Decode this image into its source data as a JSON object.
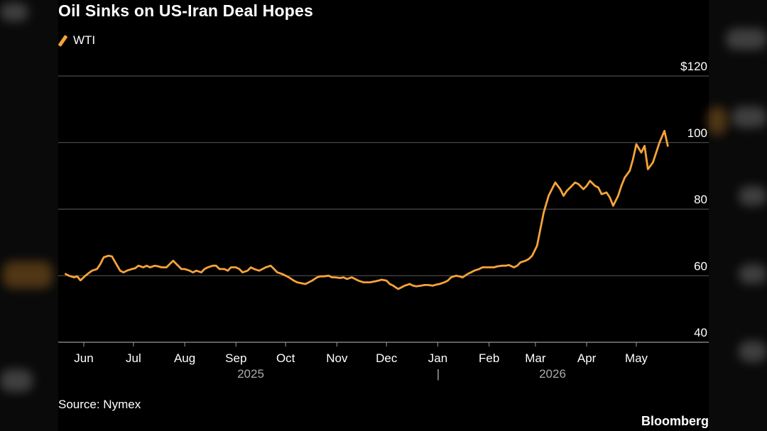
{
  "title": "Oil Sinks on US-Iran Deal Hopes",
  "source": "Source: Nymex",
  "brand": "Bloomberg",
  "colors": {
    "series": "#f7a33a",
    "grid": "#5a5a5a",
    "text": "#ffffff",
    "year_text": "#aaaaaa"
  },
  "chart_data": {
    "type": "line",
    "title": "Oil Sinks on US-Iran Deal Hopes",
    "ylim": [
      40,
      120
    ],
    "yticks": [
      40,
      60,
      80,
      100,
      120
    ],
    "ytick_labels": [
      "40",
      "60",
      "80",
      "100",
      "$120"
    ],
    "xticks": [
      "2025-06-01",
      "2025-07-01",
      "2025-08-01",
      "2025-09-01",
      "2025-10-01",
      "2025-11-01",
      "2025-12-01",
      "2026-01-01",
      "2026-02-01",
      "2026-03-01",
      "2026-04-01",
      "2026-05-01"
    ],
    "xtick_labels": [
      "Jun",
      "Jul",
      "Aug",
      "Sep",
      "Oct",
      "Nov",
      "Dec",
      "Jan",
      "Feb",
      "Mar",
      "Apr",
      "May"
    ],
    "year_labels": [
      "2025",
      "|",
      "2026"
    ],
    "grid": true,
    "legend_position": "top-left",
    "series": [
      {
        "name": "WTI",
        "x": [
          "2025-05-21",
          "2025-05-23",
          "2025-05-26",
          "2025-05-28",
          "2025-05-30",
          "2025-06-02",
          "2025-06-04",
          "2025-06-06",
          "2025-06-09",
          "2025-06-11",
          "2025-06-13",
          "2025-06-16",
          "2025-06-18",
          "2025-06-20",
          "2025-06-23",
          "2025-06-25",
          "2025-06-27",
          "2025-06-30",
          "2025-07-02",
          "2025-07-04",
          "2025-07-07",
          "2025-07-09",
          "2025-07-11",
          "2025-07-14",
          "2025-07-16",
          "2025-07-18",
          "2025-07-21",
          "2025-07-23",
          "2025-07-25",
          "2025-07-28",
          "2025-07-30",
          "2025-08-01",
          "2025-08-04",
          "2025-08-06",
          "2025-08-08",
          "2025-08-11",
          "2025-08-13",
          "2025-08-15",
          "2025-08-18",
          "2025-08-20",
          "2025-08-22",
          "2025-08-25",
          "2025-08-27",
          "2025-08-29",
          "2025-09-01",
          "2025-09-03",
          "2025-09-05",
          "2025-09-08",
          "2025-09-10",
          "2025-09-12",
          "2025-09-15",
          "2025-09-17",
          "2025-09-19",
          "2025-09-22",
          "2025-09-24",
          "2025-09-26",
          "2025-09-29",
          "2025-10-01",
          "2025-10-03",
          "2025-10-06",
          "2025-10-08",
          "2025-10-10",
          "2025-10-13",
          "2025-10-15",
          "2025-10-17",
          "2025-10-20",
          "2025-10-22",
          "2025-10-24",
          "2025-10-27",
          "2025-10-29",
          "2025-10-31",
          "2025-11-03",
          "2025-11-05",
          "2025-11-07",
          "2025-11-10",
          "2025-11-12",
          "2025-11-14",
          "2025-11-17",
          "2025-11-19",
          "2025-11-21",
          "2025-11-24",
          "2025-11-26",
          "2025-11-28",
          "2025-12-01",
          "2025-12-03",
          "2025-12-05",
          "2025-12-08",
          "2025-12-10",
          "2025-12-12",
          "2025-12-15",
          "2025-12-17",
          "2025-12-19",
          "2025-12-22",
          "2025-12-24",
          "2025-12-26",
          "2025-12-29",
          "2025-12-31",
          "2026-01-02",
          "2026-01-05",
          "2026-01-07",
          "2026-01-09",
          "2026-01-12",
          "2026-01-14",
          "2026-01-16",
          "2026-01-19",
          "2026-01-21",
          "2026-01-23",
          "2026-01-26",
          "2026-01-28",
          "2026-01-30",
          "2026-02-02",
          "2026-02-04",
          "2026-02-06",
          "2026-02-09",
          "2026-02-11",
          "2026-02-13",
          "2026-02-16",
          "2026-02-18",
          "2026-02-20",
          "2026-02-23",
          "2026-02-25",
          "2026-02-27",
          "2026-03-02",
          "2026-03-04",
          "2026-03-06",
          "2026-03-09",
          "2026-03-11",
          "2026-03-13",
          "2026-03-16",
          "2026-03-18",
          "2026-03-20",
          "2026-03-23",
          "2026-03-25",
          "2026-03-27",
          "2026-03-30",
          "2026-04-01",
          "2026-04-03",
          "2026-04-06",
          "2026-04-08",
          "2026-04-10",
          "2026-04-13",
          "2026-04-15",
          "2026-04-17",
          "2026-04-20",
          "2026-04-22",
          "2026-04-24",
          "2026-04-27",
          "2026-04-29",
          "2026-05-01",
          "2026-05-04",
          "2026-05-06",
          "2026-05-08",
          "2026-05-11",
          "2026-05-13",
          "2026-05-15",
          "2026-05-18",
          "2026-05-20"
        ],
        "y": [
          60.5,
          60,
          59.5,
          59.8,
          58.6,
          60,
          60.8,
          61.5,
          62,
          63.5,
          65.5,
          66,
          65.8,
          64,
          61.5,
          61,
          61.5,
          62,
          62.2,
          63,
          62.5,
          63,
          62.5,
          63,
          62.8,
          62.5,
          62.5,
          63.5,
          64.5,
          63,
          62,
          62,
          61.5,
          61,
          61.5,
          61,
          62,
          62.5,
          63,
          63,
          62,
          62,
          61.5,
          62.5,
          62.5,
          62,
          61,
          61.5,
          62.5,
          62,
          61.5,
          62,
          62.5,
          63,
          62,
          61,
          60.5,
          60,
          59.5,
          58.5,
          58,
          57.8,
          57.5,
          58,
          58.5,
          59.5,
          59.8,
          59.8,
          60,
          59.5,
          59.5,
          59.3,
          59.5,
          59,
          59.5,
          59,
          58.5,
          58,
          58,
          58,
          58.3,
          58.5,
          58.8,
          58.5,
          57.5,
          57,
          56,
          56.5,
          57,
          57.5,
          57,
          56.8,
          57,
          57.2,
          57.2,
          57,
          57.3,
          57.5,
          58,
          58.5,
          59.5,
          60,
          59.8,
          59.5,
          60.5,
          61,
          61.5,
          62,
          62.5,
          62.5,
          62.5,
          62.5,
          62.8,
          63,
          63,
          63.2,
          62.5,
          63,
          64,
          64.5,
          65,
          66,
          69,
          74,
          79,
          84,
          86,
          88,
          86,
          84,
          85.5,
          87,
          88,
          87.5,
          86,
          87,
          88.5,
          87,
          86.5,
          84.5,
          85,
          83.5,
          81,
          84,
          87,
          89.5,
          91.5,
          95,
          99.5,
          97,
          99,
          92,
          94,
          97,
          100,
          103.5,
          99
        ]
      }
    ]
  }
}
